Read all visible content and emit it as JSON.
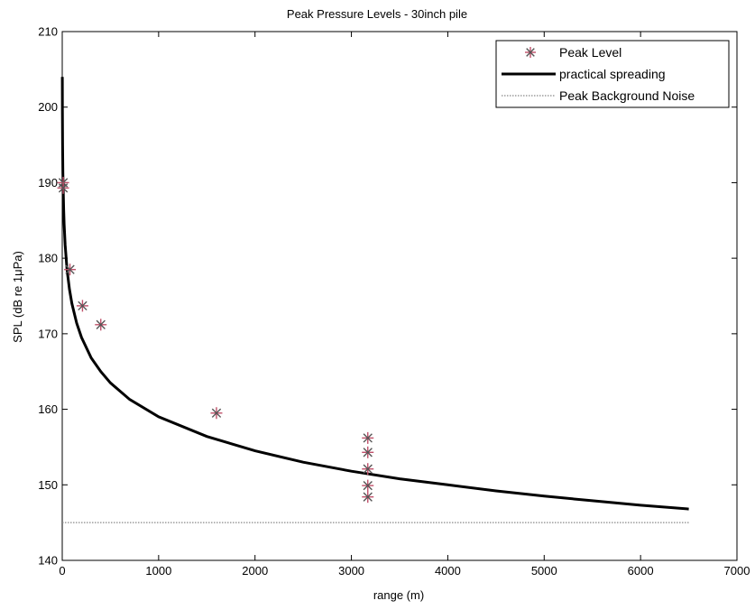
{
  "chart_data": {
    "type": "line",
    "title": "Peak Pressure Levels - 30inch pile",
    "xlabel": "range (m)",
    "ylabel": "SPL (dB re 1μPa)",
    "xlim": [
      0,
      7000
    ],
    "ylim": [
      140,
      210
    ],
    "x_ticks": [
      "0",
      "1000",
      "2000",
      "3000",
      "4000",
      "5000",
      "6000",
      "7000"
    ],
    "y_ticks": [
      "140",
      "150",
      "160",
      "170",
      "180",
      "190",
      "200",
      "210"
    ],
    "grid": false,
    "legend_position": "top-right",
    "series": [
      {
        "name": "Peak Level",
        "kind": "scatter",
        "marker": "asterisk",
        "color": "#555555",
        "accent_color": "#c0506a",
        "points": [
          {
            "x": 10,
            "y": 190.0
          },
          {
            "x": 10,
            "y": 189.3
          },
          {
            "x": 80,
            "y": 178.5
          },
          {
            "x": 210,
            "y": 173.7
          },
          {
            "x": 400,
            "y": 171.2
          },
          {
            "x": 1600,
            "y": 159.5
          },
          {
            "x": 3170,
            "y": 156.2
          },
          {
            "x": 3170,
            "y": 154.3
          },
          {
            "x": 3170,
            "y": 152.1
          },
          {
            "x": 3170,
            "y": 149.9
          },
          {
            "x": 3170,
            "y": 148.4
          }
        ]
      },
      {
        "name": "practical spreading",
        "kind": "line",
        "color": "#000000",
        "formula": "SPL = 204 - 15*log10(x)",
        "x": [
          1,
          2,
          4,
          7,
          10,
          15,
          20,
          30,
          50,
          75,
          100,
          150,
          200,
          300,
          400,
          500,
          700,
          1000,
          1500,
          2000,
          2500,
          3000,
          3500,
          4000,
          4500,
          5000,
          5500,
          6000,
          6500
        ],
        "y": [
          204.0,
          199.5,
          195.0,
          191.3,
          189.0,
          186.4,
          184.5,
          181.8,
          178.5,
          175.9,
          174.0,
          171.4,
          169.5,
          166.8,
          165.0,
          163.5,
          161.3,
          159.0,
          156.4,
          154.5,
          153.0,
          151.8,
          150.8,
          150.0,
          149.2,
          148.5,
          147.9,
          147.3,
          146.8
        ]
      },
      {
        "name": "Peak Background Noise",
        "kind": "line",
        "style": "dotted",
        "color": "#888888",
        "x": [
          0,
          6500
        ],
        "y": [
          145,
          145
        ]
      }
    ]
  }
}
